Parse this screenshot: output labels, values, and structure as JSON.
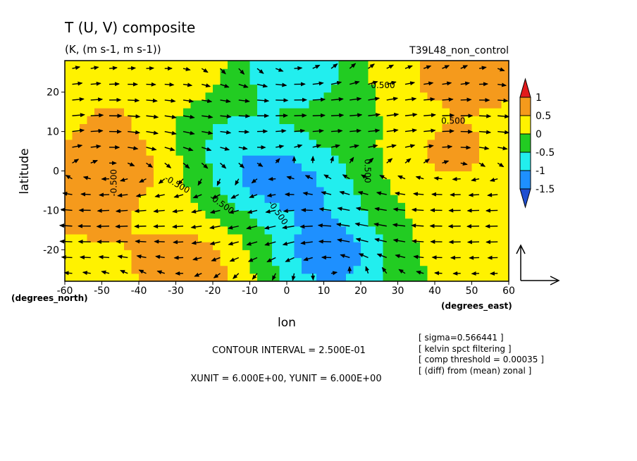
{
  "chart_data": {
    "type": "heatmap",
    "title": "T (U, V) composite",
    "subtitle": "(K, (m s-1, m s-1))",
    "run_label": "T39L48_non_control",
    "xlabel": "lon",
    "ylabel": "latitude",
    "x_unit_label": "(degrees_east)",
    "y_unit_label": "(degrees_north)",
    "xlim": [
      -60,
      60
    ],
    "ylim": [
      -28,
      28
    ],
    "x_ticks": [
      "-60",
      "-50",
      "-40",
      "-30",
      "-20",
      "-10",
      "0",
      "10",
      "20",
      "30",
      "40",
      "50",
      "60"
    ],
    "y_ticks": [
      "20",
      "10",
      "0",
      "-10",
      "-20"
    ],
    "colorbar": {
      "levels": [
        "1",
        "0.5",
        "0",
        "-0.5",
        "-1",
        "-1.5"
      ],
      "colors": [
        "#e31a1c",
        "#f59a1c",
        "#fff200",
        "#22cc22",
        "#22eeee",
        "#1e90ff",
        "#1f4fd1"
      ]
    },
    "contour_labels": [
      "-0.500",
      "0.500",
      "-0.500",
      "0.500",
      "-0.500",
      "-0.500",
      "0.500"
    ],
    "notes": {
      "contour_interval": "CONTOUR INTERVAL = 2.500E-01",
      "vector_units": "XUNIT = 6.000E+00, YUNIT = 6.000E+00",
      "info": [
        "[ sigma=0.566441 ]",
        "[ kelvin spct filtering ]",
        "[ comp threshold = 0.00035 ]",
        "[ (diff) from (mean) zonal ]"
      ]
    },
    "field_centers": [
      {
        "lon": -50,
        "lat": 5,
        "value": 0.6
      },
      {
        "lon": -55,
        "lat": -12,
        "value": 0.55
      },
      {
        "lon": -48,
        "lat": 22,
        "value": 0.35
      },
      {
        "lon": -38,
        "lat": 0,
        "value": 0.3
      },
      {
        "lon": -8,
        "lat": 0,
        "value": -0.85
      },
      {
        "lon": 6,
        "lat": -5,
        "value": -0.7
      },
      {
        "lon": 12,
        "lat": -22,
        "value": -1.3
      },
      {
        "lon": 0,
        "lat": 28,
        "value": -1.0
      },
      {
        "lon": -28,
        "lat": -25,
        "value": 0.9
      },
      {
        "lon": -25,
        "lat": 26,
        "value": 0.5
      },
      {
        "lon": 45,
        "lat": 4,
        "value": 0.6
      },
      {
        "lon": 55,
        "lat": 27,
        "value": 0.95
      },
      {
        "lon": 30,
        "lat": 22,
        "value": 0.45
      },
      {
        "lon": 38,
        "lat": -18,
        "value": 0.15
      },
      {
        "lon": -20,
        "lat": 12,
        "value": -0.4
      },
      {
        "lon": 20,
        "lat": 18,
        "value": -0.35
      }
    ]
  }
}
